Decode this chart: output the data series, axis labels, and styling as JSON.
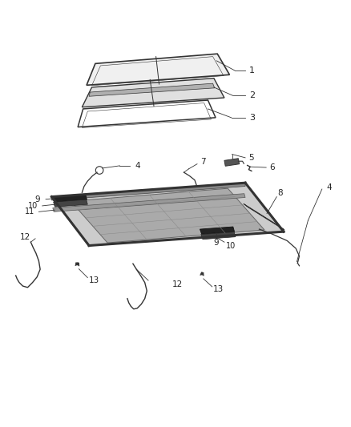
{
  "background_color": "#ffffff",
  "line_color": "#333333",
  "figsize": [
    4.38,
    5.33
  ],
  "dpi": 100
}
